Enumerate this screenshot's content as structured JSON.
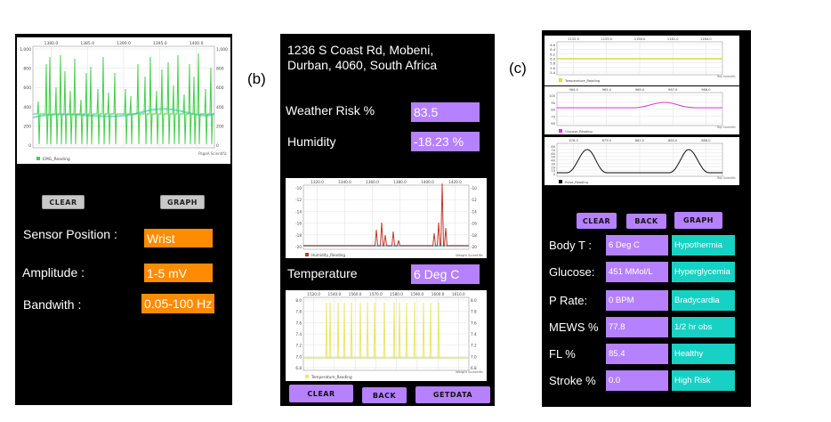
{
  "labels": {
    "b": "(b)",
    "c": "(c)"
  },
  "screen_a": {
    "chart": {
      "x_ticks": [
        "1380.0",
        "1385.0",
        "1390.0",
        "1395.0",
        "1400.0"
      ],
      "y_ticks": [
        "1,000",
        "800",
        "600",
        "400",
        "200",
        "0"
      ],
      "y_ticks_right": [
        "1,000",
        "800",
        "600",
        "400",
        "200",
        "0"
      ],
      "legend": "EMG_Reading",
      "footer": "PageA Scientific"
    },
    "buttons": {
      "clear": "CLEAR",
      "graph": "GRAPH"
    },
    "fields": [
      {
        "label": "Sensor Position :",
        "value": "Wrist"
      },
      {
        "label": "Amplitude :",
        "value": "1-5 mV"
      },
      {
        "label": "Bandwith :",
        "value": "0.05-100 Hz"
      }
    ]
  },
  "screen_b": {
    "address": "1236 S Coast Rd, Mobeni, Durban, 4060, South Africa",
    "weather": {
      "label": "Weather Risk %",
      "value": "83.5"
    },
    "humidity": {
      "label": "Humidity",
      "value": "-18.23 %"
    },
    "chart1": {
      "x_ticks": [
        "1320.0",
        "1340.0",
        "1360.0",
        "1380.0",
        "1400.0",
        "1420.0"
      ],
      "y_ticks": [
        "-10",
        "-12",
        "-14",
        "-16",
        "-18",
        "-20"
      ],
      "y_ticks_right": [
        "-10",
        "-12",
        "-14",
        "-16",
        "-18",
        "-20"
      ],
      "legend": "Humidity_Reading",
      "footer": "Weight Scientific"
    },
    "temperature": {
      "label": "Temperature",
      "value": "6 Deg C"
    },
    "chart2": {
      "x_ticks": [
        "1520.0",
        "1540.0",
        "1560.0",
        "1570.0",
        "1580.0",
        "1590.0",
        "1600.0",
        "1610.0"
      ],
      "y_ticks": [
        "8.0",
        "7.8",
        "7.6",
        "7.4",
        "7.2",
        "7.0",
        "6.8"
      ],
      "y_ticks_right": [
        "8.0",
        "7.8",
        "7.6",
        "7.4",
        "7.2",
        "7.0",
        "6.8"
      ],
      "legend": "Temperature_Reading",
      "footer": "Weight Scientific"
    },
    "buttons": {
      "clear": "CLEAR",
      "back": "BACK",
      "getdata": "GETDATA"
    }
  },
  "screen_c": {
    "chart1": {
      "x_ticks": [
        "1152.0",
        "1155.0",
        "1158.0",
        "1161.0",
        "1164.0"
      ],
      "y_ticks": [
        "6.6",
        "6.4",
        "6.2",
        "6.0",
        "5.8",
        "5.6",
        "5.4"
      ],
      "legend": "Temperature_Reading",
      "footer": "Ray Scientific"
    },
    "chart2": {
      "x_ticks": [
        "964.0",
        "965.0",
        "966.0",
        "967.0",
        "968.0"
      ],
      "y_ticks": [
        "100",
        "90",
        "80",
        "70",
        "60"
      ],
      "legend": "Glucose_Reading",
      "footer": "Ray Scientific"
    },
    "chart3": {
      "x_ticks": [
        "876.0",
        "879.0",
        "882.0",
        "885.0",
        "888.0"
      ],
      "y_ticks": [
        "80",
        "70",
        "60",
        "50",
        "40",
        "30",
        "20",
        "10",
        "0"
      ],
      "legend": "Pulse_Reading",
      "footer": "Ray Scientific"
    },
    "buttons": {
      "clear": "CLEAR",
      "back": "BACK",
      "graph": "GRAPH"
    },
    "rows": [
      {
        "label": "Body T :",
        "value": "6 Deg C",
        "status": "Hypothermia"
      },
      {
        "label": "Glucose:",
        "value": "451 MMol/L",
        "status": "Hyperglycemia"
      },
      {
        "label": "P Rate:",
        "value": "0 BPM",
        "status": "Bradycardia"
      },
      {
        "label": "MEWS %",
        "value": "77.8",
        "status": "1/2 hr obs"
      },
      {
        "label": "FL %",
        "value": "85.4",
        "status": "Healthy"
      },
      {
        "label": "Stroke %",
        "value": "0.0",
        "status": "High Risk"
      }
    ]
  },
  "colors": {
    "orange": "#ff8c00",
    "purple": "#b681ff",
    "teal": "#17d1c4",
    "emg": "#44d04a",
    "emg_base": "#7fd6e8",
    "humidity": "#c0392b",
    "humidity_base": "#6fd3e8",
    "temp": "#ece66a",
    "glucose": "#d63ad6",
    "pulse": "#111111"
  }
}
